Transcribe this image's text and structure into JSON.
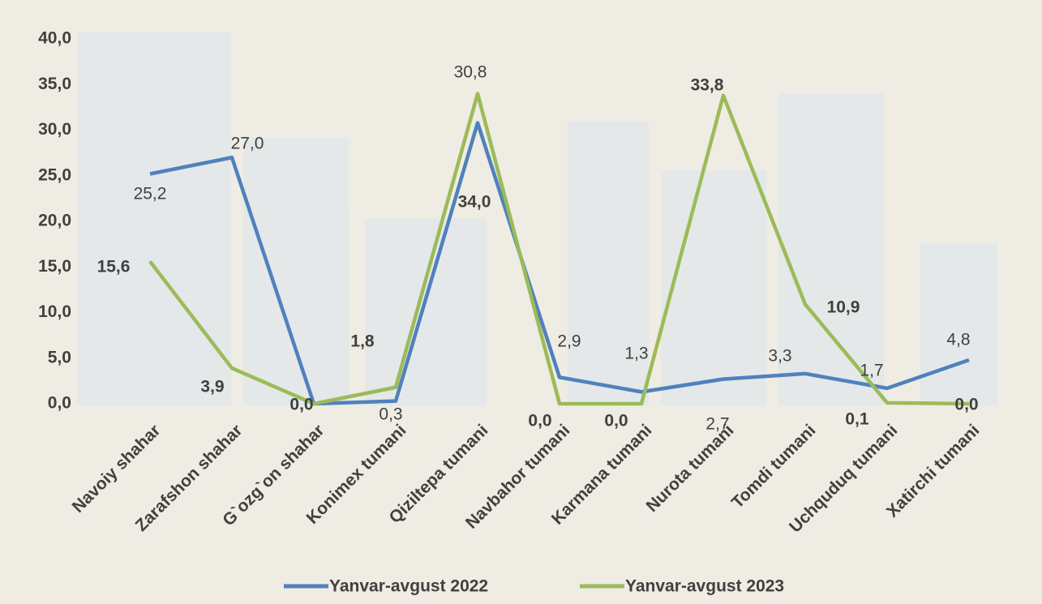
{
  "chart_data": {
    "type": "line",
    "categories": [
      "Navoiy shahar",
      "Zarafshon shahar",
      "G`ozg`on shahar",
      "Konimex tumani",
      "Qiziltepa tumani",
      "Navbahor tumani",
      "Karmana tumani",
      "Nurota tumani",
      "Tomdi tumani",
      "Uchquduq tumani",
      "Xatirchi tumani"
    ],
    "series": [
      {
        "name": "Yanvar-avgust 2022",
        "color": "#4f81bd",
        "values": [
          25.2,
          27.0,
          0.0,
          0.3,
          30.8,
          2.9,
          1.3,
          2.7,
          3.3,
          1.7,
          4.8
        ],
        "value_labels": [
          "25,2",
          "27,0",
          null,
          "0,3",
          "30,8",
          "2,9",
          "1,3",
          "2,7",
          "3,3",
          "1,7",
          "4,8"
        ]
      },
      {
        "name": "Yanvar-avgust 2023",
        "color": "#9bbb59",
        "values": [
          15.6,
          3.9,
          0.0,
          1.8,
          34.0,
          0.0,
          0.0,
          33.8,
          10.9,
          0.1,
          0.0
        ],
        "value_labels": [
          "15,6",
          "3,9",
          "0,0",
          "1,8",
          "34,0",
          "0,0",
          "0,0",
          "33,8",
          "10,9",
          "0,1",
          "0,0"
        ]
      }
    ],
    "ylim": [
      0,
      40
    ],
    "yticks": [
      {
        "value": 0,
        "label": "0,0"
      },
      {
        "value": 5,
        "label": "5,0"
      },
      {
        "value": 10,
        "label": "10,0"
      },
      {
        "value": 15,
        "label": "15,0"
      },
      {
        "value": 20,
        "label": "20,0"
      },
      {
        "value": 25,
        "label": "25,0"
      },
      {
        "value": 30,
        "label": "30,0"
      },
      {
        "value": 35,
        "label": "35,0"
      },
      {
        "value": 40,
        "label": "40,0"
      }
    ],
    "grid": false,
    "legend": "bottom"
  }
}
